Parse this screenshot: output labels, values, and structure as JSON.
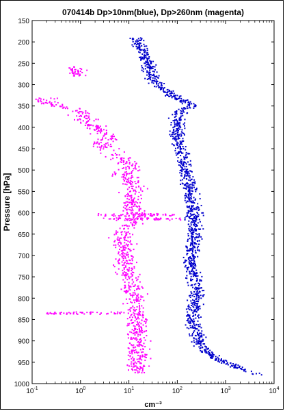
{
  "chart_data": {
    "type": "scatter",
    "title": "070414b Dp>10nm(blue), Dp>260nm (magenta)",
    "xlabel": "cm⁻³",
    "ylabel": "Pressure [hPa]",
    "xscale": "log",
    "xlim": [
      0.1,
      10000
    ],
    "ylim": [
      150,
      1000
    ],
    "y_reversed": true,
    "y_ticks": [
      150,
      200,
      250,
      300,
      350,
      400,
      450,
      500,
      550,
      600,
      650,
      700,
      750,
      800,
      850,
      900,
      950,
      1000
    ],
    "x_ticks": [
      {
        "value": 0.1,
        "base": "10",
        "exp": "-1"
      },
      {
        "value": 1,
        "base": "10",
        "exp": "0"
      },
      {
        "value": 10,
        "base": "10",
        "exp": "1"
      },
      {
        "value": 100,
        "base": "10",
        "exp": "2"
      },
      {
        "value": 1000,
        "base": "10",
        "exp": "3"
      },
      {
        "value": 10000,
        "base": "10",
        "exp": "4"
      }
    ],
    "grid": false,
    "series": [
      {
        "color": "#0000cc",
        "profile": [
          [
            190,
            14
          ],
          [
            200,
            16
          ],
          [
            210,
            17
          ],
          [
            220,
            19
          ],
          [
            230,
            20
          ],
          [
            240,
            22
          ],
          [
            250,
            24
          ],
          [
            260,
            26
          ],
          [
            270,
            28
          ],
          [
            280,
            30
          ],
          [
            290,
            32
          ],
          [
            300,
            40
          ],
          [
            310,
            50
          ],
          [
            320,
            65
          ],
          [
            330,
            95
          ],
          [
            340,
            150
          ],
          [
            350,
            200
          ],
          [
            360,
            120
          ],
          [
            370,
            105
          ],
          [
            380,
            100
          ],
          [
            390,
            95
          ],
          [
            400,
            97
          ],
          [
            420,
            100
          ],
          [
            440,
            110
          ],
          [
            460,
            120
          ],
          [
            480,
            130
          ],
          [
            500,
            145
          ],
          [
            520,
            160
          ],
          [
            540,
            175
          ],
          [
            560,
            190
          ],
          [
            580,
            205
          ],
          [
            600,
            220
          ],
          [
            620,
            225
          ],
          [
            640,
            230
          ],
          [
            660,
            220
          ],
          [
            680,
            200
          ],
          [
            700,
            190
          ],
          [
            720,
            195
          ],
          [
            740,
            210
          ],
          [
            760,
            230
          ],
          [
            780,
            260
          ],
          [
            800,
            250
          ],
          [
            820,
            230
          ],
          [
            840,
            200
          ],
          [
            860,
            230
          ],
          [
            880,
            250
          ],
          [
            900,
            280
          ],
          [
            920,
            360
          ],
          [
            940,
            600
          ],
          [
            960,
            1500
          ],
          [
            980,
            5000
          ]
        ],
        "spread": 0.13
      },
      {
        "color": "#ff00ff",
        "profile": [
          [
            258,
            0.8
          ],
          [
            265,
            0.9
          ],
          [
            272,
            0.85
          ],
          [
            280,
            0.9
          ],
          [
            330,
            0.2
          ],
          [
            340,
            0.18
          ],
          [
            350,
            0.3
          ],
          [
            360,
            0.9
          ],
          [
            370,
            1.0
          ],
          [
            380,
            1.2
          ],
          [
            390,
            1.5
          ],
          [
            400,
            2.0
          ],
          [
            410,
            2.5
          ],
          [
            420,
            3.5
          ],
          [
            430,
            4.0
          ],
          [
            440,
            3.0
          ],
          [
            450,
            3.5
          ],
          [
            460,
            4.5
          ],
          [
            470,
            6.0
          ],
          [
            480,
            9.0
          ],
          [
            490,
            12.0
          ],
          [
            500,
            9.0
          ],
          [
            510,
            8.0
          ],
          [
            520,
            10.0
          ],
          [
            530,
            12.0
          ],
          [
            540,
            14.0
          ],
          [
            560,
            12.0
          ],
          [
            580,
            11.0
          ],
          [
            600,
            14.0
          ],
          [
            620,
            12.0
          ],
          [
            640,
            8.0
          ],
          [
            660,
            7.0
          ],
          [
            680,
            8.0
          ],
          [
            700,
            9.0
          ],
          [
            720,
            8.0
          ],
          [
            740,
            10.0
          ],
          [
            760,
            12.0
          ],
          [
            780,
            11.0
          ],
          [
            800,
            13.0
          ],
          [
            820,
            14.0
          ],
          [
            840,
            16.0
          ],
          [
            860,
            15.0
          ],
          [
            880,
            15.0
          ],
          [
            900,
            15.0
          ],
          [
            920,
            15.0
          ],
          [
            940,
            15.0
          ],
          [
            960,
            15.0
          ],
          [
            975,
            16.0
          ]
        ],
        "spread": 0.2,
        "bands": [
          {
            "p": 605,
            "xmin": 2,
            "xmax": 95
          },
          {
            "p": 615,
            "xmin": 3,
            "xmax": 120
          },
          {
            "p": 835,
            "xmin": 0.2,
            "xmax": 15
          }
        ]
      }
    ]
  }
}
